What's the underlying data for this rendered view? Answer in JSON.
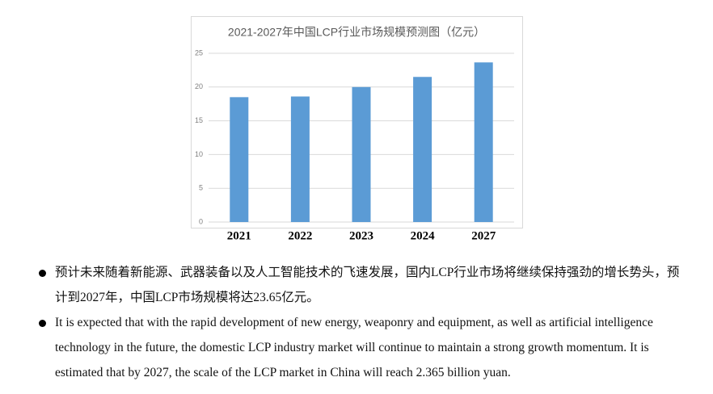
{
  "chart_data": {
    "type": "bar",
    "title": "2021-2027年中国LCP行业市场规模预测图（亿元）",
    "categories": [
      "2021",
      "2022",
      "2023",
      "2024",
      "2027"
    ],
    "values": [
      18.5,
      18.6,
      20.0,
      21.5,
      23.65
    ],
    "color": "#5b9bd5",
    "ylim": [
      0,
      25
    ],
    "yticks": [
      0,
      5,
      10,
      15,
      20,
      25
    ],
    "grid": true
  },
  "bullets": [
    "预计未来随着新能源、武器装备以及人工智能技术的飞速发展，国内LCP行业市场将继续保持强劲的增长势头，预计到2027年，中国LCP市场规模将达23.65亿元。",
    "It is expected that with the rapid development of new energy, weaponry and equipment, as well as artificial intelligence technology in the future, the domestic LCP industry market will continue to maintain a strong growth momentum. It is estimated that by 2027, the scale of the LCP market in China will reach 2.365 billion yuan."
  ]
}
